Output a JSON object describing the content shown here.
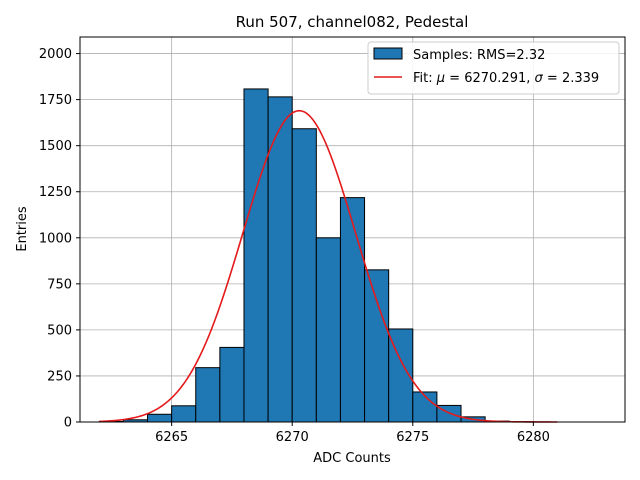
{
  "chart_data": {
    "type": "bar",
    "title": "Run 507, channel082, Pedestal",
    "xlabel": "ADC Counts",
    "ylabel": "Entries",
    "xlim": [
      6261.2,
      6283.8
    ],
    "ylim": [
      0,
      2090
    ],
    "xticks": [
      6265,
      6270,
      6275,
      6280
    ],
    "yticks": [
      0,
      250,
      500,
      750,
      1000,
      1250,
      1500,
      1750,
      2000
    ],
    "grid": true,
    "legend_position": "top-right",
    "bar_color": "#1f77b4",
    "fit_color": "#e41a1c",
    "histogram": {
      "label": "Samples: RMS=2.32",
      "bin_edges": [
        6262,
        6263,
        6264,
        6265,
        6266,
        6267,
        6268,
        6269,
        6270,
        6271,
        6272,
        6273,
        6274,
        6275,
        6276,
        6277,
        6278,
        6279,
        6280,
        6281,
        6282,
        6283
      ],
      "counts": [
        3,
        12,
        42,
        88,
        295,
        405,
        1808,
        1765,
        1592,
        1000,
        1218,
        826,
        505,
        163,
        90,
        28,
        5,
        2,
        0,
        0,
        0
      ]
    },
    "fit": {
      "label": "Fit: μ = 6270.291, σ = 2.339",
      "label_prefix": "Fit: ",
      "mu_symbol": "μ",
      "sigma_symbol": "σ",
      "mu": 6270.291,
      "mu_text": "6270.291",
      "sigma": 2.339,
      "sigma_text": "2.339",
      "amplitude": 1690,
      "x_range": [
        6262,
        6281
      ]
    }
  }
}
